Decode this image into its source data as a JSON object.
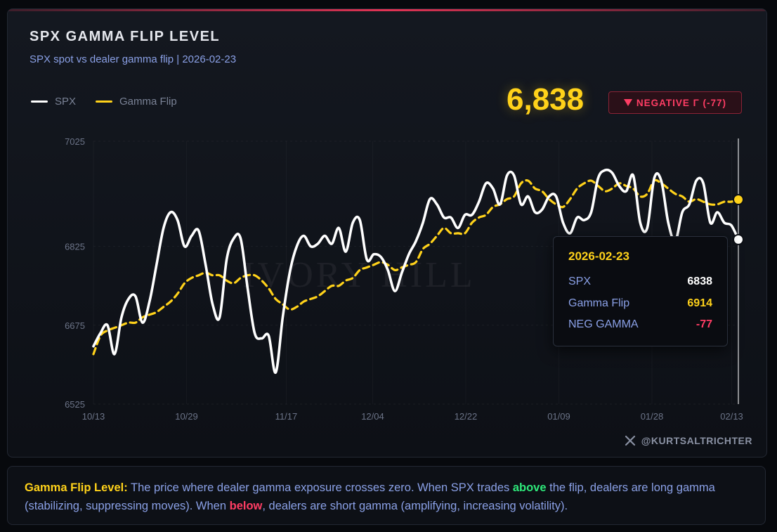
{
  "header": {
    "title": "SPX GAMMA FLIP LEVEL",
    "subtitle": "SPX spot vs dealer gamma flip | 2026-02-23"
  },
  "legend": [
    {
      "label": "SPX",
      "color": "#ffffff"
    },
    {
      "label": "Gamma Flip",
      "color": "#ffd21a"
    }
  ],
  "headline": {
    "value": "6,838",
    "badge_icon": "triangle-down-icon",
    "badge_text": "NEGATIVE Γ (-77)"
  },
  "watermark": "IVORY HILL",
  "tooltip": {
    "date": "2026-02-23",
    "rows": [
      {
        "label": "SPX",
        "value": "6838",
        "color": "#ffffff"
      },
      {
        "label": "Gamma Flip",
        "value": "6914",
        "color": "#ffd21a"
      },
      {
        "label": "NEG GAMMA",
        "value": "-77",
        "color": "#ff3d64"
      }
    ]
  },
  "credit": {
    "icon": "x-logo-icon",
    "handle": "@KURTSALTRICHTER"
  },
  "note": {
    "title": "Gamma Flip Level:",
    "part1": " The price where dealer gamma exposure crosses zero. When SPX trades ",
    "above": "above",
    "part2": " the flip, dealers are long gamma (stabilizing, suppressing moves). When ",
    "below": "below",
    "part3": ", dealers are short gamma (amplifying, increasing volatility)."
  },
  "colors": {
    "spx": "#ffffff",
    "flip": "#ffd21a",
    "negative": "#ff3d64",
    "positive": "#2ee87a",
    "accent": "#8aa0e6"
  },
  "chart_data": {
    "type": "line",
    "x_ticks": [
      "10/13",
      "10/29",
      "11/17",
      "12/04",
      "12/22",
      "01/09",
      "01/28",
      "02/13"
    ],
    "y_ticks": [
      7025,
      6825,
      6675,
      6525
    ],
    "ylim": [
      6525,
      7025
    ],
    "grid": true,
    "legend_position": "top-left",
    "series": [
      {
        "name": "SPX",
        "color": "#ffffff",
        "values": [
          6635,
          6660,
          6675,
          6620,
          6690,
          6725,
          6730,
          6680,
          6720,
          6790,
          6860,
          6890,
          6875,
          6825,
          6845,
          6855,
          6790,
          6715,
          6690,
          6800,
          6840,
          6840,
          6745,
          6660,
          6650,
          6655,
          6585,
          6690,
          6775,
          6825,
          6845,
          6825,
          6830,
          6845,
          6830,
          6860,
          6815,
          6870,
          6875,
          6800,
          6810,
          6805,
          6780,
          6740,
          6775,
          6810,
          6835,
          6870,
          6915,
          6905,
          6880,
          6880,
          6860,
          6885,
          6885,
          6910,
          6945,
          6935,
          6905,
          6960,
          6960,
          6905,
          6920,
          6890,
          6895,
          6920,
          6920,
          6870,
          6850,
          6880,
          6875,
          6890,
          6955,
          6970,
          6965,
          6940,
          6930,
          6960,
          6870,
          6860,
          6955,
          6950,
          6870,
          6835,
          6890,
          6905,
          6950,
          6945,
          6870,
          6890,
          6870,
          6865,
          6838
        ]
      },
      {
        "name": "Gamma Flip",
        "color": "#ffd21a",
        "values": [
          6620,
          6655,
          6665,
          6670,
          6675,
          6680,
          6680,
          6690,
          6695,
          6700,
          6710,
          6720,
          6735,
          6755,
          6765,
          6770,
          6775,
          6770,
          6770,
          6760,
          6755,
          6765,
          6770,
          6770,
          6760,
          6745,
          6725,
          6715,
          6705,
          6710,
          6720,
          6725,
          6730,
          6740,
          6750,
          6750,
          6760,
          6765,
          6780,
          6785,
          6790,
          6795,
          6790,
          6780,
          6785,
          6790,
          6795,
          6820,
          6830,
          6845,
          6860,
          6850,
          6850,
          6850,
          6870,
          6880,
          6885,
          6900,
          6905,
          6915,
          6920,
          6945,
          6950,
          6935,
          6930,
          6915,
          6905,
          6900,
          6915,
          6935,
          6945,
          6950,
          6940,
          6930,
          6935,
          6945,
          6940,
          6935,
          6920,
          6925,
          6950,
          6945,
          6935,
          6925,
          6920,
          6910,
          6915,
          6910,
          6905,
          6905,
          6910,
          6910,
          6914
        ]
      }
    ]
  }
}
